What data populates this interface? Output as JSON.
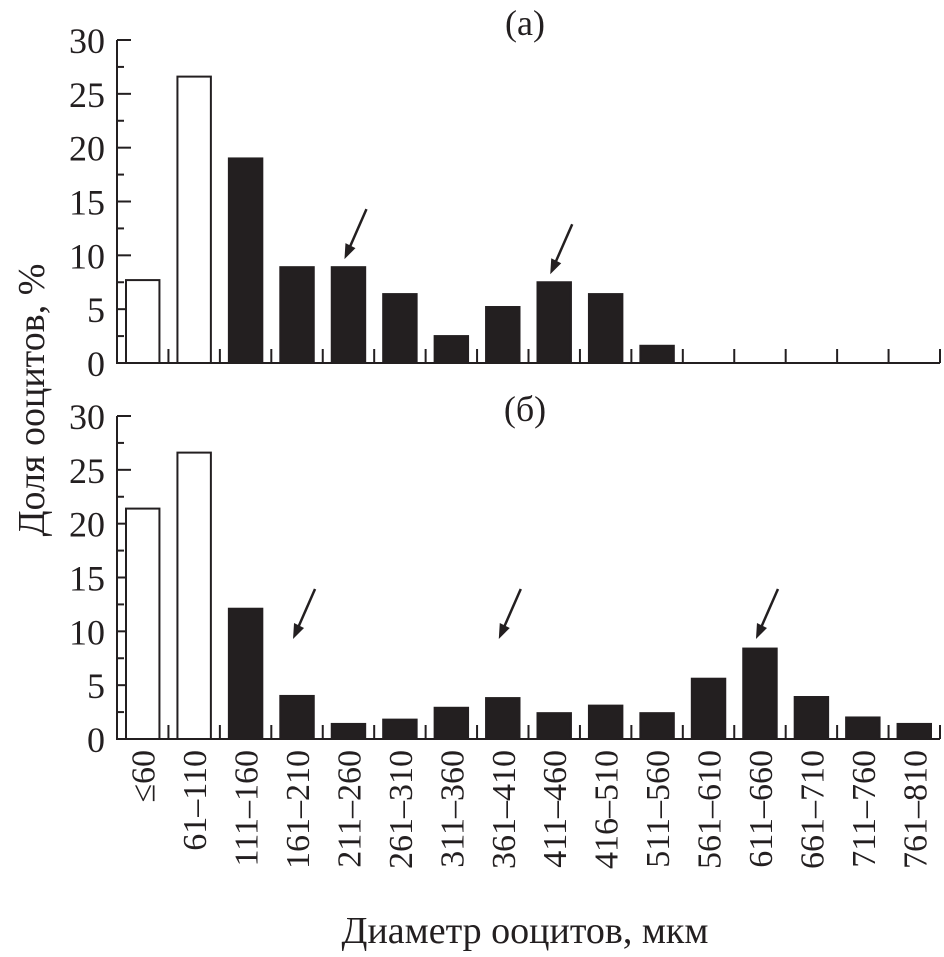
{
  "chart_data": {
    "type": "bar",
    "ylabel": "Доля ооцитов, %",
    "xlabel": "Диаметр ооцитов, мкм",
    "categories": [
      "≤60",
      "61–110",
      "111–160",
      "161–210",
      "211–260",
      "261–310",
      "311–360",
      "361–410",
      "411–460",
      "416–510",
      "511–560",
      "561–610",
      "611–660",
      "661–710",
      "711–760",
      "761–810"
    ],
    "ylim": [
      0,
      30
    ],
    "yticks": [
      "0",
      "5",
      "10",
      "15",
      "20",
      "25",
      "30"
    ],
    "grid": false,
    "open_bar_categories": [
      0,
      1
    ],
    "colors": {
      "filled": "#231f20",
      "open": "#ffffff",
      "stroke": "#231f20"
    },
    "panels": [
      {
        "label": "(а)",
        "values": [
          7.7,
          26.6,
          19.0,
          8.9,
          8.9,
          6.4,
          2.5,
          5.2,
          7.5,
          6.4,
          1.6,
          0,
          0,
          0,
          0,
          0
        ],
        "arrow_categories": [
          4,
          8
        ]
      },
      {
        "label": "(б)",
        "values": [
          21.4,
          26.6,
          12.1,
          4.0,
          1.4,
          1.8,
          2.9,
          3.8,
          2.4,
          3.1,
          2.4,
          5.6,
          8.4,
          3.9,
          2.0,
          1.4
        ],
        "arrow_categories": [
          3,
          7,
          12
        ]
      }
    ]
  }
}
